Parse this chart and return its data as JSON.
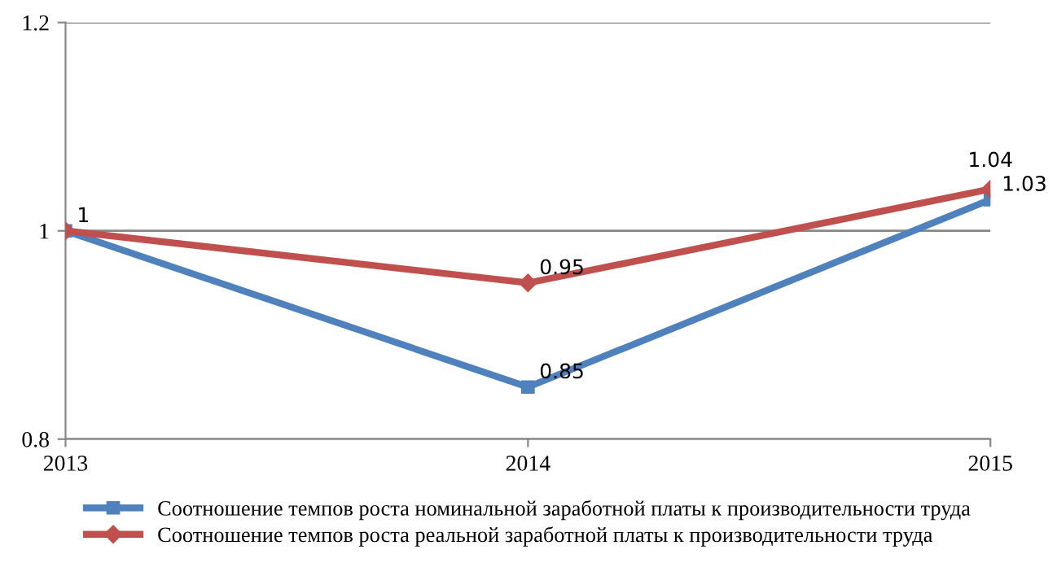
{
  "chart_data": {
    "type": "line",
    "categories": [
      "2013",
      "2014",
      "2015"
    ],
    "series": [
      {
        "name": "Соотношение темпов роста номинальной заработной платы к производительности труда",
        "color": "#4f81bd",
        "marker": "square",
        "values": [
          1,
          0.85,
          1.03
        ],
        "value_labels": [
          "1",
          "0.85",
          "1.03"
        ]
      },
      {
        "name": "Соотношение темпов роста реальной заработной платы к производительности труда",
        "color": "#c0504d",
        "marker": "diamond",
        "values": [
          1,
          0.95,
          1.04
        ],
        "value_labels": [
          null,
          "0.95",
          "1.04"
        ]
      }
    ],
    "ylim": [
      0.8,
      1.2
    ],
    "yticks": [
      0.8,
      1,
      1.2
    ],
    "grid": "y",
    "legend": "bottom",
    "line_style": "solid"
  }
}
